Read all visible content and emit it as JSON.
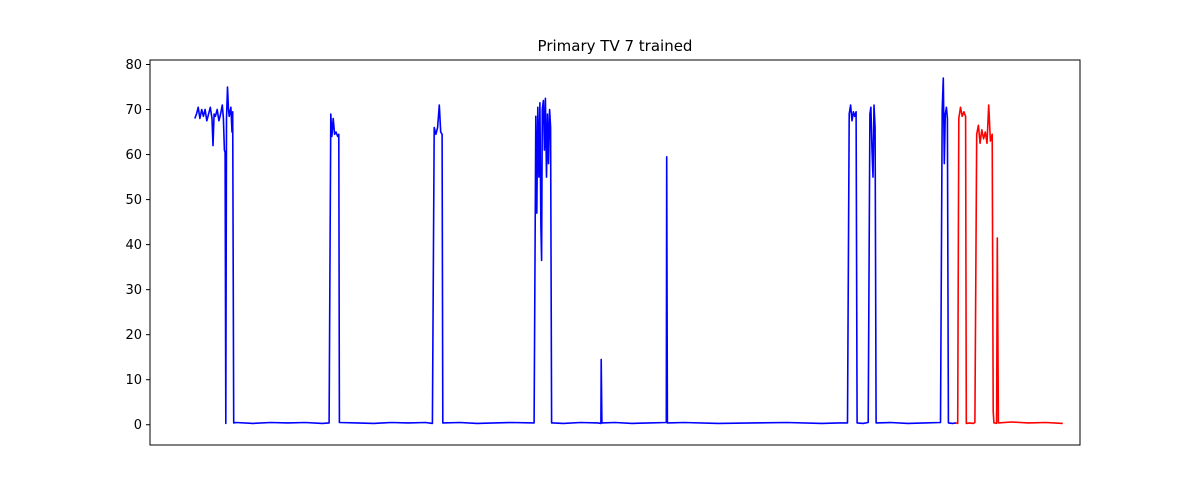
{
  "chart_data": {
    "type": "line",
    "title": "Primary TV 7 trained",
    "xlabel": "",
    "ylabel": "",
    "ylim": [
      -4.5,
      81
    ],
    "xlim": [
      -5,
      265
    ],
    "yticks": [
      0,
      10,
      20,
      30,
      40,
      50,
      60,
      70,
      80
    ],
    "xticks_visible": false,
    "grid": false,
    "series": [
      {
        "color": "#0000ff",
        "points": [
          [
            8,
            68
          ],
          [
            8.5,
            69
          ],
          [
            9,
            70.5
          ],
          [
            9.5,
            68
          ],
          [
            10,
            70
          ],
          [
            10.5,
            68.5
          ],
          [
            11,
            70
          ],
          [
            11.5,
            67.5
          ],
          [
            12,
            69
          ],
          [
            12.5,
            70.5
          ],
          [
            13,
            68
          ],
          [
            13.3,
            62
          ],
          [
            13.6,
            69
          ],
          [
            14,
            68.5
          ],
          [
            14.5,
            70
          ],
          [
            15,
            67.5
          ],
          [
            15.5,
            69
          ],
          [
            16,
            71
          ],
          [
            16.3,
            68
          ],
          [
            16.6,
            61
          ],
          [
            16.8,
            60.5
          ],
          [
            17,
            0.3
          ],
          [
            17.2,
            68
          ],
          [
            17.5,
            75
          ],
          [
            17.8,
            70
          ],
          [
            18,
            68.5
          ],
          [
            18.5,
            70.5
          ],
          [
            18.8,
            65
          ],
          [
            19,
            69.5
          ],
          [
            19.3,
            0.4
          ],
          [
            20,
            0.5
          ],
          [
            25,
            0.3
          ],
          [
            30,
            0.5
          ],
          [
            35,
            0.4
          ],
          [
            40,
            0.5
          ],
          [
            45,
            0.3
          ],
          [
            47,
            0.4
          ],
          [
            47.5,
            69
          ],
          [
            47.8,
            64
          ],
          [
            48.2,
            68
          ],
          [
            48.6,
            64.5
          ],
          [
            49,
            65
          ],
          [
            49.5,
            64
          ],
          [
            49.8,
            64.5
          ],
          [
            50,
            0.5
          ],
          [
            55,
            0.4
          ],
          [
            60,
            0.3
          ],
          [
            65,
            0.5
          ],
          [
            70,
            0.4
          ],
          [
            75,
            0.5
          ],
          [
            77,
            0.3
          ],
          [
            77.5,
            66
          ],
          [
            78,
            64.5
          ],
          [
            78.5,
            66
          ],
          [
            79,
            71
          ],
          [
            79.4,
            65
          ],
          [
            79.8,
            64.5
          ],
          [
            80,
            0.4
          ],
          [
            85,
            0.5
          ],
          [
            90,
            0.3
          ],
          [
            95,
            0.4
          ],
          [
            100,
            0.5
          ],
          [
            106.5,
            0.4
          ],
          [
            107,
            68.5
          ],
          [
            107.3,
            47
          ],
          [
            107.6,
            70.5
          ],
          [
            107.9,
            55
          ],
          [
            108.2,
            71.5
          ],
          [
            108.5,
            44
          ],
          [
            108.7,
            36.5
          ],
          [
            108.9,
            70
          ],
          [
            109.2,
            72
          ],
          [
            109.5,
            61
          ],
          [
            109.8,
            72.5
          ],
          [
            110.1,
            55
          ],
          [
            110.4,
            69
          ],
          [
            110.7,
            58
          ],
          [
            111,
            70
          ],
          [
            111.3,
            66
          ],
          [
            111.6,
            0.4
          ],
          [
            112,
            0.4
          ],
          [
            115,
            0.3
          ],
          [
            120,
            0.5
          ],
          [
            125,
            0.4
          ],
          [
            125.9,
            0.3
          ],
          [
            126,
            14.5
          ],
          [
            126.2,
            0.4
          ],
          [
            130,
            0.5
          ],
          [
            135,
            0.3
          ],
          [
            140,
            0.4
          ],
          [
            144.9,
            0.5
          ],
          [
            145,
            59.5
          ],
          [
            145.2,
            0.4
          ],
          [
            150,
            0.5
          ],
          [
            160,
            0.3
          ],
          [
            170,
            0.4
          ],
          [
            180,
            0.5
          ],
          [
            190,
            0.3
          ],
          [
            195,
            0.4
          ],
          [
            197.5,
            0.4
          ],
          [
            198,
            69
          ],
          [
            198.4,
            71
          ],
          [
            198.8,
            67.5
          ],
          [
            199.2,
            69.5
          ],
          [
            199.6,
            68.5
          ],
          [
            200,
            69.5
          ],
          [
            200.3,
            0.4
          ],
          [
            202,
            0.3
          ],
          [
            203.5,
            0.5
          ],
          [
            204,
            69
          ],
          [
            204.3,
            70.5
          ],
          [
            204.6,
            61
          ],
          [
            204.9,
            55
          ],
          [
            205.2,
            71
          ],
          [
            205.5,
            66
          ],
          [
            205.8,
            0.4
          ],
          [
            210,
            0.5
          ],
          [
            215,
            0.3
          ],
          [
            220,
            0.4
          ],
          [
            224.5,
            0.5
          ],
          [
            225,
            70
          ],
          [
            225.3,
            77
          ],
          [
            225.6,
            58
          ],
          [
            225.9,
            69
          ],
          [
            226.2,
            70.5
          ],
          [
            226.5,
            68
          ],
          [
            226.8,
            0.4
          ],
          [
            228,
            0.3
          ],
          [
            229,
            0.4
          ]
        ]
      },
      {
        "color": "#ff0000",
        "points": [
          [
            229,
            0.4
          ],
          [
            229.5,
            0.3
          ],
          [
            229.8,
            68
          ],
          [
            230.3,
            70.5
          ],
          [
            230.8,
            68.5
          ],
          [
            231.3,
            69.5
          ],
          [
            231.8,
            68.5
          ],
          [
            232,
            0.3
          ],
          [
            233,
            0.4
          ],
          [
            234,
            0.3
          ],
          [
            234.5,
            0.5
          ],
          [
            235,
            64.5
          ],
          [
            235.5,
            66.5
          ],
          [
            236,
            62.5
          ],
          [
            236.5,
            65.5
          ],
          [
            237,
            63.5
          ],
          [
            237.5,
            65
          ],
          [
            238,
            62.5
          ],
          [
            238.5,
            71
          ],
          [
            239,
            63
          ],
          [
            239.5,
            64.5
          ],
          [
            239.8,
            3
          ],
          [
            240,
            0.4
          ],
          [
            240.8,
            0.3
          ],
          [
            241,
            41.5
          ],
          [
            241.3,
            0.4
          ],
          [
            245,
            0.6
          ],
          [
            250,
            0.4
          ],
          [
            255,
            0.5
          ],
          [
            260,
            0.3
          ]
        ]
      }
    ]
  }
}
